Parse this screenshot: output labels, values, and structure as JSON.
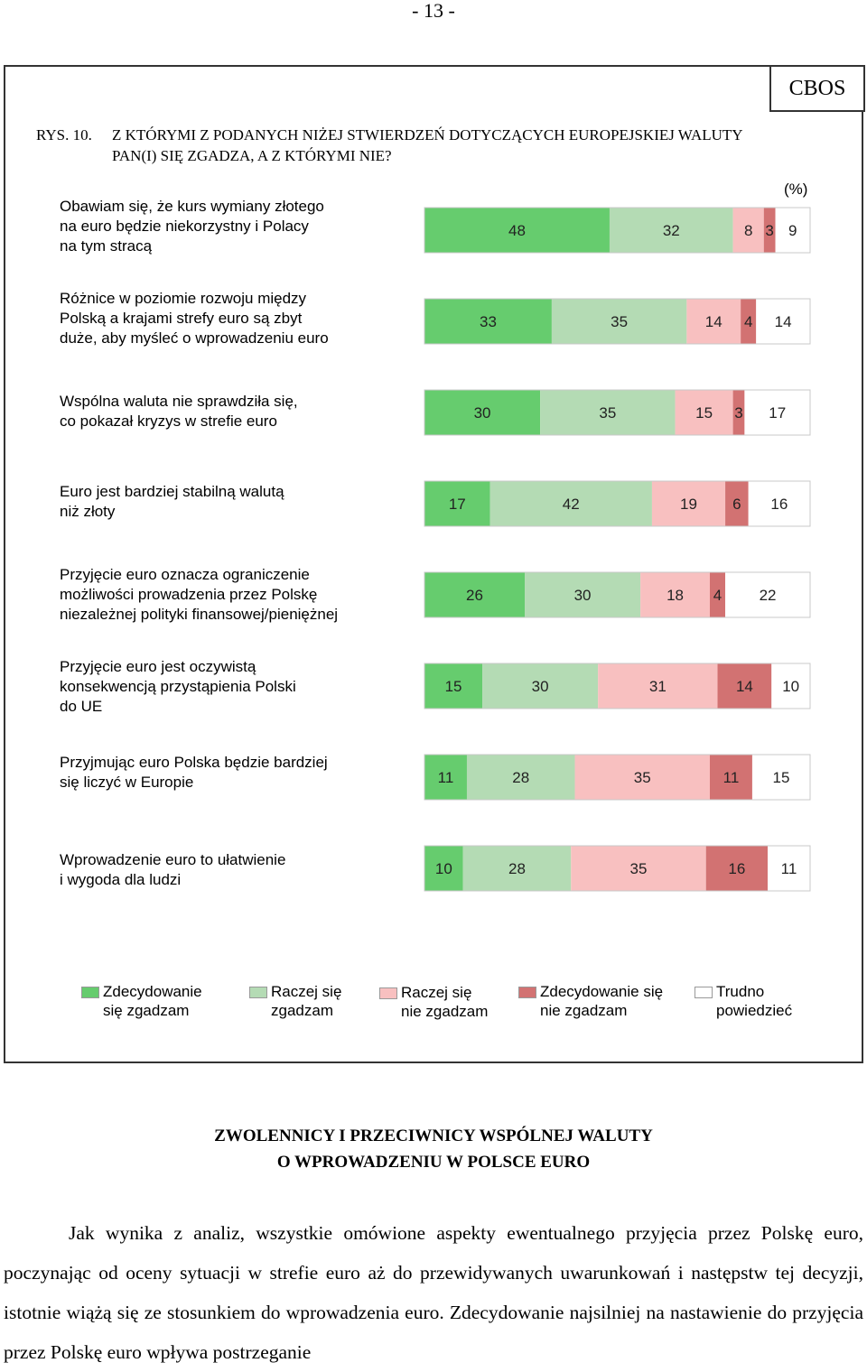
{
  "page": {
    "number": "- 13 -"
  },
  "figure": {
    "source": "CBOS",
    "number": "RYS. 10.",
    "title": "Z KTÓRYMI Z PODANYCH NIŻEJ STWIERDZEŃ DOTYCZĄCYCH EUROPEJSKIEJ WALUTY PAN(I) SIĘ ZGADZA, A Z KTÓRYMI NIE?",
    "unit": "(%)"
  },
  "chart_data": {
    "type": "bar",
    "orientation": "horizontal",
    "stacked": true,
    "categories": [
      "Obawiam się, że kurs wymiany złotego\nna euro będzie niekorzystny i Polacy\nna tym stracą",
      "Różnice w poziomie rozwoju między\nPolską a krajami strefy euro są zbyt\nduże, aby myśleć o wprowadzeniu euro",
      "Wspólna waluta nie sprawdziła się,\nco pokazał kryzys w strefie euro",
      "Euro jest bardziej stabilną walutą\nniż złoty",
      "Przyjęcie euro oznacza ograniczenie\nmożliwości prowadzenia przez Polskę\nniezależnej polityki finansowej/pieniężnej",
      "Przyjęcie euro jest oczywistą\nkonsekwencją przystąpienia Polski\ndo UE",
      "Przyjmując euro Polska będzie bardziej\nsię liczyć w Europie",
      "Wprowadzenie euro to ułatwienie\ni wygoda dla ludzi"
    ],
    "series": [
      {
        "name": "Zdecydowanie\nsię zgadzam",
        "color": "#66cc6e",
        "values": [
          48,
          33,
          30,
          17,
          26,
          15,
          11,
          10
        ]
      },
      {
        "name": "Raczej się\nzgadzam",
        "color": "#b4dbb4",
        "values": [
          32,
          35,
          35,
          42,
          30,
          30,
          28,
          28
        ]
      },
      {
        "name": "Raczej się\nnie zgadzam",
        "color": "#f8c0c0",
        "values": [
          8,
          14,
          15,
          19,
          18,
          31,
          35,
          35
        ]
      },
      {
        "name": "Zdecydowanie się\nnie zgadzam",
        "color": "#d27272",
        "values": [
          3,
          4,
          3,
          6,
          4,
          14,
          11,
          16
        ]
      },
      {
        "name": "Trudno\npowiedzieć",
        "color": "#ffffff",
        "values": [
          9,
          14,
          17,
          16,
          22,
          10,
          15,
          11
        ]
      }
    ],
    "xlim": [
      0,
      100
    ],
    "unit": "%",
    "legend": "bottom"
  },
  "section": {
    "heading_line1": "ZWOLENNICY I PRZECIWNICY WSPÓLNEJ WALUTY",
    "heading_line2": "O WPROWADZENIU W POLSCE EURO",
    "paragraph": "Jak wynika z analiz, wszystkie omówione aspekty ewentualnego przyjęcia przez Polskę euro, poczynając od oceny sytuacji w strefie euro aż do przewidywanych uwarunkowań i następstw tej decyzji, istotnie wiążą się ze stosunkiem do wprowadzenia euro. Zdecydowanie najsilniej na nastawienie do przyjęcia przez Polskę euro wpływa postrzeganie"
  }
}
